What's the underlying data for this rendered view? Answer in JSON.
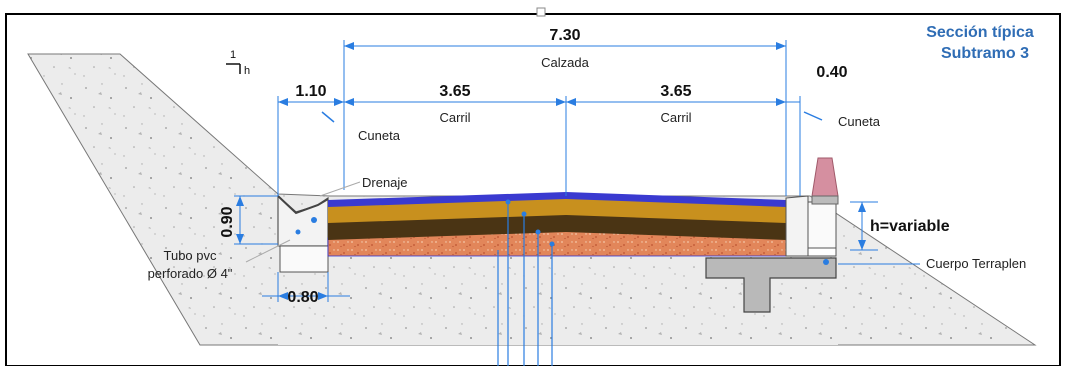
{
  "title": {
    "line1": "Sección típica",
    "line2": "Subtramo 3",
    "color": "#2f6db5"
  },
  "slope": {
    "rise": "1",
    "run": "h"
  },
  "dimensions": {
    "total_width": "7.30",
    "left_shoulder": "1.10",
    "lane_left": "3.65",
    "lane_right": "3.65",
    "right_shoulder": "0.40",
    "ditch_depth": "0.90",
    "ditch_width": "0.80",
    "fill_height": "h=variable"
  },
  "labels": {
    "calzada": "Calzada",
    "carril_left": "Carril",
    "carril_right": "Carril",
    "cuneta_left": "Cuneta",
    "cuneta_right": "Cuneta",
    "drenaje": "Drenaje",
    "tubo_line1": "Tubo pvc",
    "tubo_line2": "perforado Ø 4\"",
    "cuerpo": "Cuerpo Terraplen"
  },
  "colors": {
    "dimension": "#2a7de1",
    "surface": "#3a3ad0",
    "layer_base": "#c8901e",
    "layer_dark": "#4a3414",
    "layer_subbase": "#e2865a",
    "fill": "#ececec"
  }
}
